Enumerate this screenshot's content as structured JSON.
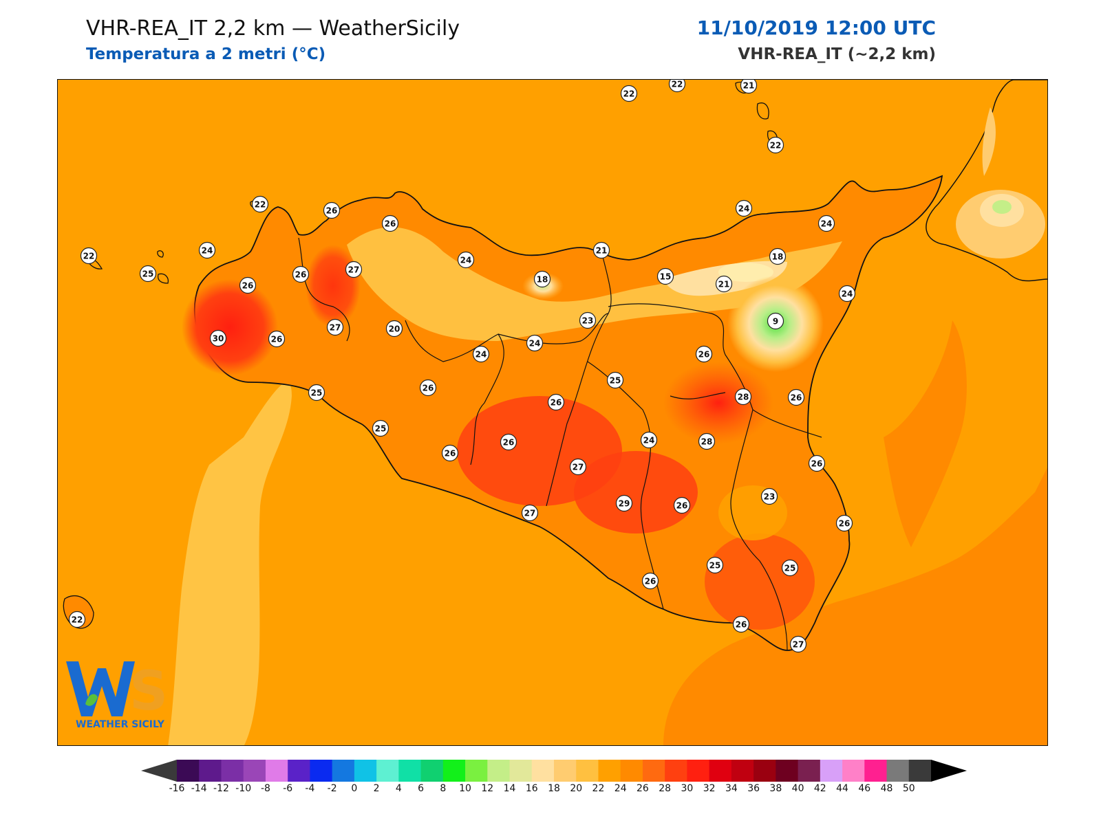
{
  "header": {
    "title_left": "VHR-REA_IT 2,2 km — WeatherSicily",
    "subtitle_left": "Temperatura a 2 metri (°C)",
    "title_right": "11/10/2019 12:00 UTC",
    "subtitle_right": "VHR-REA_IT (~2,2 km)"
  },
  "logo": {
    "letters": "WS",
    "caption": "WEATHER SICILY"
  },
  "colorbar": {
    "ticks": [
      "-16",
      "-14",
      "-12",
      "-10",
      "-8",
      "-6",
      "-4",
      "-2",
      "0",
      "2",
      "4",
      "6",
      "8",
      "10",
      "12",
      "14",
      "16",
      "18",
      "20",
      "22",
      "24",
      "26",
      "28",
      "30",
      "32",
      "34",
      "36",
      "38",
      "40",
      "42",
      "44",
      "46",
      "48",
      "50"
    ],
    "colors": [
      "#3b0a55",
      "#5e1a8c",
      "#7b2fa6",
      "#9a46b7",
      "#e07be8",
      "#5a22c8",
      "#0a2af0",
      "#1478e0",
      "#10c2e6",
      "#5ef0d2",
      "#10e0a6",
      "#10d070",
      "#12f01a",
      "#7af040",
      "#c4ee88",
      "#e2e89a",
      "#ffe0a0",
      "#ffcc70",
      "#ffc040",
      "#ffa000",
      "#ff8a00",
      "#ff6a10",
      "#ff4010",
      "#ff2010",
      "#e00010",
      "#c00010",
      "#9a0010",
      "#6e0020",
      "#7a2050",
      "#d8a0f8",
      "#ff80c8",
      "#ff2090",
      "#7a7a7a",
      "#3a3a3a"
    ],
    "under_color": "#3a3a3a",
    "over_color": "#000000"
  },
  "stations": [
    {
      "value": "22"
    },
    {
      "value": "22"
    },
    {
      "value": "21"
    },
    {
      "value": "22"
    },
    {
      "value": "22"
    },
    {
      "value": "26"
    },
    {
      "value": "26"
    },
    {
      "value": "24"
    },
    {
      "value": "24"
    },
    {
      "value": "24"
    },
    {
      "value": "22"
    },
    {
      "value": "25"
    },
    {
      "value": "24"
    },
    {
      "value": "26"
    },
    {
      "value": "26"
    },
    {
      "value": "27"
    },
    {
      "value": "21"
    },
    {
      "value": "18"
    },
    {
      "value": "18"
    },
    {
      "value": "15"
    },
    {
      "value": "21"
    },
    {
      "value": "24"
    },
    {
      "value": "9"
    },
    {
      "value": "23"
    },
    {
      "value": "27"
    },
    {
      "value": "20"
    },
    {
      "value": "30"
    },
    {
      "value": "26"
    },
    {
      "value": "24"
    },
    {
      "value": "24"
    },
    {
      "value": "26"
    },
    {
      "value": "25"
    },
    {
      "value": "25"
    },
    {
      "value": "26"
    },
    {
      "value": "26"
    },
    {
      "value": "28"
    },
    {
      "value": "26"
    },
    {
      "value": "25"
    },
    {
      "value": "26"
    },
    {
      "value": "26"
    },
    {
      "value": "24"
    },
    {
      "value": "28"
    },
    {
      "value": "27"
    },
    {
      "value": "26"
    },
    {
      "value": "23"
    },
    {
      "value": "29"
    },
    {
      "value": "26"
    },
    {
      "value": "27"
    },
    {
      "value": "26"
    },
    {
      "value": "25"
    },
    {
      "value": "25"
    },
    {
      "value": "26"
    },
    {
      "value": "26"
    },
    {
      "value": "27"
    },
    {
      "value": "22"
    }
  ]
}
